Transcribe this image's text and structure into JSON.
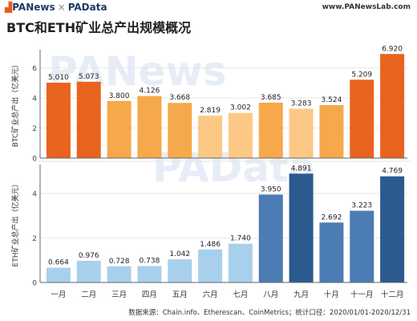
{
  "header": {
    "brand_pa": "PANews",
    "brand_sep": "×",
    "brand_data": "PAData",
    "site": "www.PANewsLab.com"
  },
  "title": "BTC和ETH矿业总产出规模概况",
  "watermarks": [
    "PANews",
    "PAData"
  ],
  "source": "数据来源：Chain.info、Etherescan、CoinMetrics；统计口径：2020/01/01-2020/12/31",
  "colors": {
    "btc_top": "#e8641e",
    "btc_mid": "#f6a94a",
    "btc_low": "#fcc886",
    "eth_top": "#2b5a8e",
    "eth_mid": "#4b7cb4",
    "eth_low": "#a8d0ec",
    "axis": "#666666",
    "grid": "#e3e3e3"
  },
  "chart_data": [
    {
      "type": "bar",
      "ylabel": "BTC矿业总产出（亿美元）",
      "ylim": [
        0,
        7.2
      ],
      "yticks": [
        0,
        2,
        4,
        6
      ],
      "categories": [
        "一月",
        "二月",
        "三月",
        "四月",
        "五月",
        "六月",
        "七月",
        "八月",
        "九月",
        "十月",
        "十一月",
        "十二月"
      ],
      "values": [
        5.01,
        5.073,
        3.8,
        4.126,
        3.668,
        2.819,
        3.002,
        3.685,
        3.283,
        3.524,
        5.209,
        6.92
      ],
      "labels": [
        "5.010",
        "5.073",
        "3.800",
        "4.126",
        "3.668",
        "2.819",
        "3.002",
        "3.685",
        "3.283",
        "3.524",
        "5.209",
        "6.920"
      ],
      "color_tiers": [
        "top",
        "top",
        "mid",
        "mid",
        "mid",
        "low",
        "low",
        "mid",
        "low",
        "mid",
        "top",
        "top"
      ]
    },
    {
      "type": "bar",
      "ylabel": "ETH矿业总产出（亿美元）",
      "ylim": [
        0,
        5.3
      ],
      "yticks": [
        0,
        2,
        4
      ],
      "categories": [
        "一月",
        "二月",
        "三月",
        "四月",
        "五月",
        "六月",
        "七月",
        "八月",
        "九月",
        "十月",
        "十一月",
        "十二月"
      ],
      "values": [
        0.664,
        0.976,
        0.728,
        0.738,
        1.042,
        1.486,
        1.74,
        3.95,
        4.891,
        2.692,
        3.223,
        4.769
      ],
      "labels": [
        "0.664",
        "0.976",
        "0.728",
        "0.738",
        "1.042",
        "1.486",
        "1.740",
        "3.950",
        "4.891",
        "2.692",
        "3.223",
        "4.769"
      ],
      "color_tiers": [
        "low",
        "low",
        "low",
        "low",
        "low",
        "low",
        "low",
        "mid",
        "top",
        "mid",
        "mid",
        "top"
      ]
    }
  ]
}
